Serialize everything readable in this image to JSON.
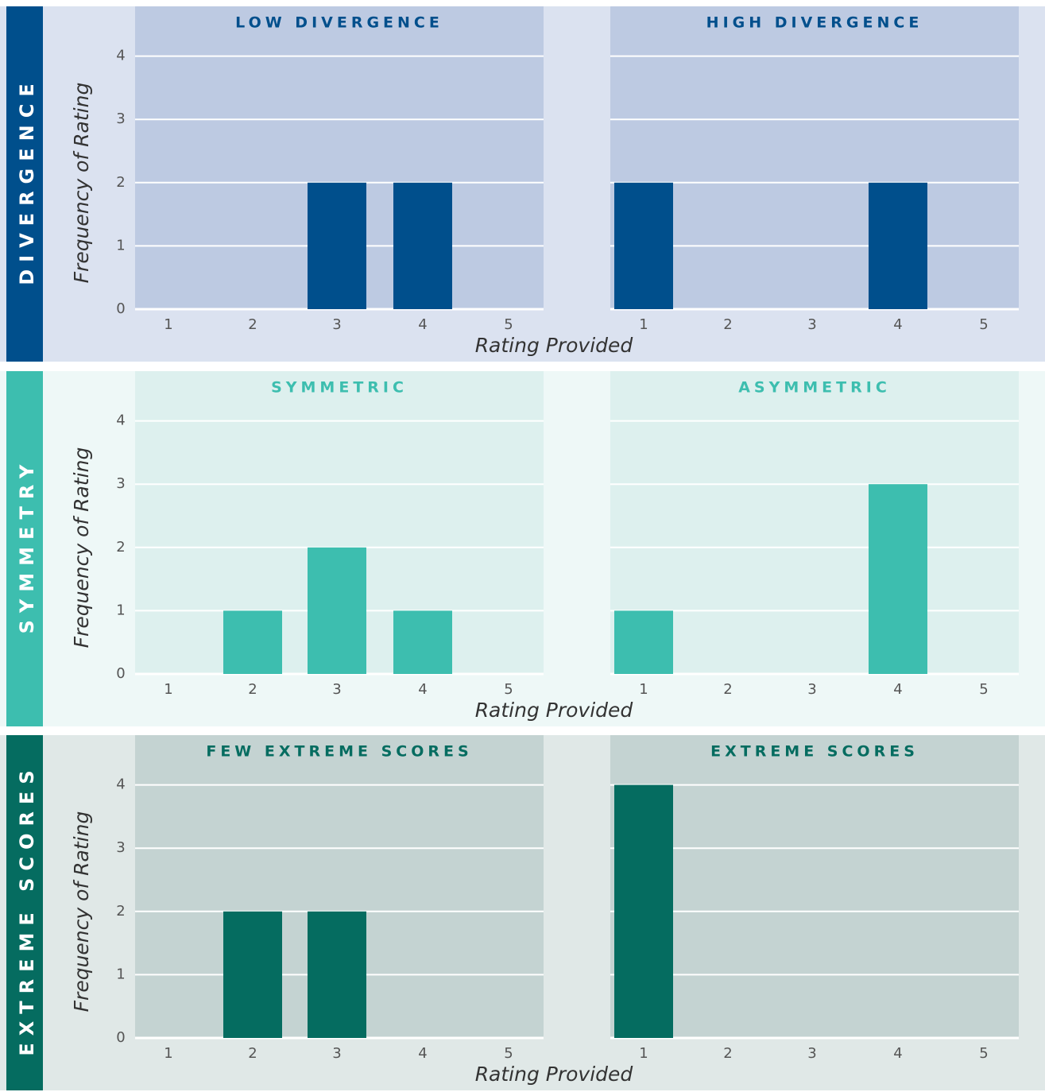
{
  "chart_data": [
    {
      "type": "bar",
      "row": "DIVERGENCE",
      "title": "LOW DIVERGENCE",
      "categories": [
        "1",
        "2",
        "3",
        "4",
        "5"
      ],
      "values": [
        0,
        0,
        2,
        2,
        0
      ],
      "xlabel": "Rating Provided",
      "ylabel": "Frequency of Rating",
      "ylim": [
        0,
        4
      ],
      "yticks": [
        "0",
        "1",
        "2",
        "3",
        "4"
      ],
      "grid": true,
      "colors": {
        "bar": "#004f8c",
        "plot_bg": "#bdcae2",
        "row_bg": "#dbe2f0",
        "title": "#004f8c",
        "row_label_bg": "#004f8c"
      }
    },
    {
      "type": "bar",
      "row": "DIVERGENCE",
      "title": "HIGH DIVERGENCE",
      "categories": [
        "1",
        "2",
        "3",
        "4",
        "5"
      ],
      "values": [
        2,
        0,
        0,
        2,
        0
      ],
      "xlabel": "Rating Provided",
      "ylabel": "Frequency of Rating",
      "ylim": [
        0,
        4
      ],
      "yticks": [
        "0",
        "1",
        "2",
        "3",
        "4"
      ],
      "grid": true,
      "colors": {
        "bar": "#004f8c",
        "plot_bg": "#bdcae2",
        "row_bg": "#dbe2f0",
        "title": "#004f8c",
        "row_label_bg": "#004f8c"
      }
    },
    {
      "type": "bar",
      "row": "SYMMETRY",
      "title": "SYMMETRIC",
      "categories": [
        "1",
        "2",
        "3",
        "4",
        "5"
      ],
      "values": [
        0,
        1,
        2,
        1,
        0
      ],
      "xlabel": "Rating Provided",
      "ylabel": "Frequency of Rating",
      "ylim": [
        0,
        4
      ],
      "yticks": [
        "0",
        "1",
        "2",
        "3",
        "4"
      ],
      "grid": true,
      "colors": {
        "bar": "#3dbeaf",
        "plot_bg": "#ddf0ee",
        "row_bg": "#eef8f7",
        "title": "#3dbeaf",
        "row_label_bg": "#3dbeaf"
      }
    },
    {
      "type": "bar",
      "row": "SYMMETRY",
      "title": "ASYMMETRIC",
      "categories": [
        "1",
        "2",
        "3",
        "4",
        "5"
      ],
      "values": [
        1,
        0,
        0,
        3,
        0
      ],
      "xlabel": "Rating Provided",
      "ylabel": "Frequency of Rating",
      "ylim": [
        0,
        4
      ],
      "yticks": [
        "0",
        "1",
        "2",
        "3",
        "4"
      ],
      "grid": true,
      "colors": {
        "bar": "#3dbeaf",
        "plot_bg": "#ddf0ee",
        "row_bg": "#eef8f7",
        "title": "#3dbeaf",
        "row_label_bg": "#3dbeaf"
      }
    },
    {
      "type": "bar",
      "row": "EXTREME SCORES",
      "title": "FEW EXTREME SCORES",
      "categories": [
        "1",
        "2",
        "3",
        "4",
        "5"
      ],
      "values": [
        0,
        2,
        2,
        0,
        0
      ],
      "xlabel": "Rating Provided",
      "ylabel": "Frequency of Rating",
      "ylim": [
        0,
        4
      ],
      "yticks": [
        "0",
        "1",
        "2",
        "3",
        "4"
      ],
      "grid": true,
      "colors": {
        "bar": "#056c60",
        "plot_bg": "#c4d3d2",
        "row_bg": "#e0e8e7",
        "title": "#056c60",
        "row_label_bg": "#056c60"
      }
    },
    {
      "type": "bar",
      "row": "EXTREME SCORES",
      "title": "EXTREME SCORES",
      "categories": [
        "1",
        "2",
        "3",
        "4",
        "5"
      ],
      "values": [
        4,
        0,
        0,
        0,
        0
      ],
      "xlabel": "Rating Provided",
      "ylabel": "Frequency of Rating",
      "ylim": [
        0,
        4
      ],
      "yticks": [
        "0",
        "1",
        "2",
        "3",
        "4"
      ],
      "grid": true,
      "colors": {
        "bar": "#056c60",
        "plot_bg": "#c4d3d2",
        "row_bg": "#e0e8e7",
        "title": "#056c60",
        "row_label_bg": "#056c60"
      }
    }
  ]
}
